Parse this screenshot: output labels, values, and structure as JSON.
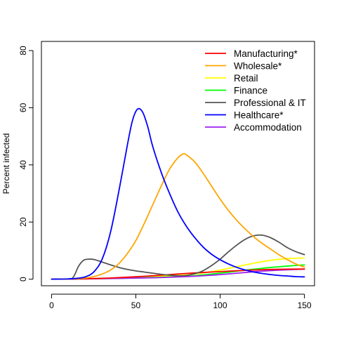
{
  "chart_data": {
    "type": "line",
    "title": "",
    "xlabel": "",
    "ylabel": "Percent infected",
    "xlim": [
      -6,
      156
    ],
    "ylim": [
      -2.3,
      83.2
    ],
    "xticks": [
      0,
      50,
      100,
      150
    ],
    "yticks": [
      0,
      20,
      40,
      60,
      80
    ],
    "grid": false,
    "legend_position": "top-right",
    "series": [
      {
        "name": "Manufacturing*",
        "color": "#ff0000",
        "x": [
          0,
          10,
          20,
          30,
          40,
          50,
          60,
          70,
          80,
          90,
          100,
          110,
          120,
          130,
          140,
          150
        ],
        "values": [
          0,
          0.05,
          0.15,
          0.3,
          0.55,
          0.85,
          1.2,
          1.6,
          2.0,
          2.35,
          2.65,
          2.95,
          3.2,
          3.4,
          3.5,
          3.55
        ]
      },
      {
        "name": "Wholesale*",
        "color": "#ffa500",
        "x": [
          0,
          10,
          20,
          25,
          30,
          35,
          40,
          45,
          50,
          55,
          60,
          65,
          70,
          75,
          78,
          80,
          85,
          90,
          95,
          100,
          105,
          110,
          115,
          120,
          125,
          130,
          135,
          140,
          145,
          150
        ],
        "values": [
          0,
          0.05,
          0.4,
          0.9,
          1.8,
          3.2,
          5.5,
          9.0,
          13.5,
          19.5,
          26.0,
          32.5,
          38.5,
          42.5,
          43.8,
          43.5,
          41.0,
          37.0,
          32.5,
          28.0,
          24.0,
          20.5,
          17.5,
          14.8,
          12.5,
          10.5,
          8.5,
          6.8,
          5.3,
          4.2
        ]
      },
      {
        "name": "Retail",
        "color": "#ffff00",
        "x": [
          0,
          20,
          40,
          60,
          80,
          90,
          100,
          110,
          120,
          130,
          140,
          150
        ],
        "values": [
          0,
          0.1,
          0.4,
          0.9,
          1.5,
          2.2,
          3.2,
          4.4,
          5.6,
          6.6,
          7.2,
          7.4
        ]
      },
      {
        "name": "Finance",
        "color": "#00ff00",
        "x": [
          0,
          20,
          40,
          60,
          80,
          90,
          100,
          110,
          120,
          130,
          140,
          150
        ],
        "values": [
          0,
          0.1,
          0.3,
          0.6,
          1.0,
          1.5,
          2.1,
          2.8,
          3.5,
          4.1,
          4.6,
          5.0
        ]
      },
      {
        "name": "Professional & IT",
        "color": "#555555",
        "x": [
          0,
          10,
          13,
          16,
          19,
          22,
          25,
          30,
          35,
          40,
          45,
          50,
          55,
          60,
          65,
          70,
          75,
          80,
          85,
          90,
          95,
          100,
          105,
          110,
          115,
          120,
          125,
          130,
          135,
          140,
          145,
          150
        ],
        "values": [
          0,
          0.1,
          0.8,
          4.5,
          6.6,
          7.0,
          6.9,
          6.0,
          5.0,
          4.1,
          3.4,
          2.9,
          2.5,
          2.1,
          1.7,
          1.4,
          1.2,
          1.3,
          1.9,
          3.0,
          4.8,
          7.0,
          9.6,
          12.0,
          14.0,
          15.2,
          15.4,
          14.5,
          12.9,
          11.0,
          9.6,
          8.6
        ]
      },
      {
        "name": "Healthcare*",
        "color": "#0000ff",
        "x": [
          0,
          10,
          15,
          20,
          25,
          30,
          35,
          40,
          45,
          48,
          51,
          54,
          57,
          60,
          65,
          70,
          75,
          80,
          85,
          90,
          95,
          100,
          105,
          110,
          115,
          120,
          125,
          130,
          135,
          140,
          145,
          150
        ],
        "values": [
          0,
          0.1,
          0.3,
          0.8,
          2.5,
          7.0,
          16.5,
          31.0,
          47.0,
          55.5,
          59.5,
          58.5,
          53.5,
          46.5,
          37.5,
          30.0,
          23.5,
          18.5,
          14.5,
          11.2,
          8.7,
          6.8,
          5.3,
          4.1,
          3.2,
          2.5,
          2.0,
          1.6,
          1.3,
          1.1,
          0.9,
          0.8
        ]
      },
      {
        "name": "Accommodation",
        "color": "#a020f0",
        "x": [
          0,
          20,
          40,
          60,
          80,
          90,
          100,
          110,
          120,
          130,
          140,
          150
        ],
        "values": [
          0,
          0.1,
          0.3,
          0.5,
          0.9,
          1.2,
          1.6,
          2.1,
          2.6,
          3.0,
          3.3,
          3.5
        ]
      }
    ]
  }
}
